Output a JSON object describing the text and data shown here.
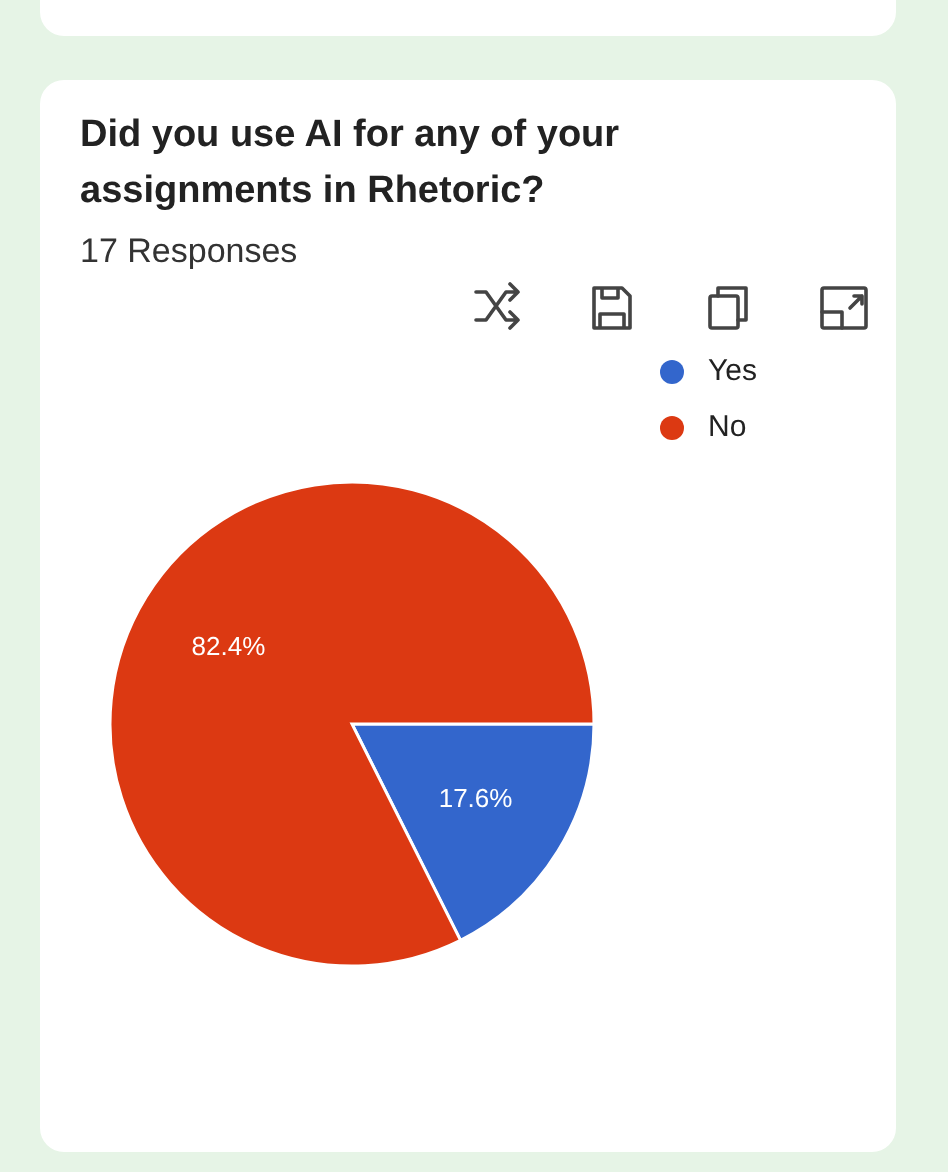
{
  "chart_data": {
    "type": "pie",
    "title": "Did you use AI for any of your assignments in Rhetoric?",
    "subtitle": "17 Responses",
    "categories": [
      "Yes",
      "No"
    ],
    "values": [
      17.6,
      82.4
    ],
    "colors": [
      "#3366cc",
      "#dc3912"
    ],
    "value_labels": [
      "17.6%",
      "82.4%"
    ],
    "legend": "top right"
  }
}
